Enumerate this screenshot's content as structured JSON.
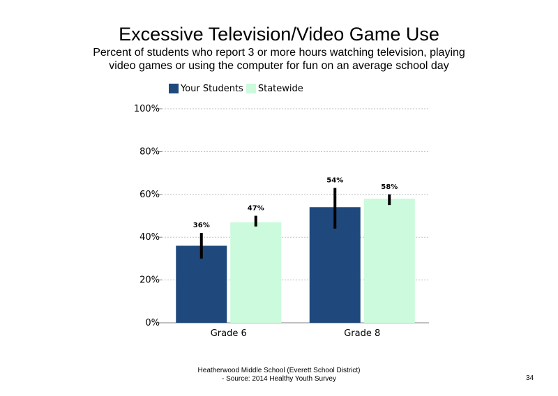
{
  "slide": {
    "title": "Excessive Television/Video Game Use",
    "subtitle": "Percent of students who report 3 or more hours watching television, playing video games or using the computer for fun on an average school day",
    "footer_line1": "Heatherwood Middle School (Everett School District)",
    "footer_line2": "- Source: 2014 Healthy  Youth Survey",
    "page_number": "34"
  },
  "chart_data": {
    "type": "bar",
    "categories": [
      "Grade 6",
      "Grade 8"
    ],
    "series": [
      {
        "name": "Your Students",
        "color": "#1f497d",
        "values": [
          36,
          54
        ],
        "labels": [
          "36%",
          "54%"
        ],
        "error_low": [
          30,
          44
        ],
        "error_high": [
          42,
          63
        ]
      },
      {
        "name": "Statewide",
        "color": "#ccfadc",
        "values": [
          47,
          58
        ],
        "labels": [
          "47%",
          "58%"
        ],
        "error_low": [
          45,
          55
        ],
        "error_high": [
          50,
          60
        ]
      }
    ],
    "ylim": [
      0,
      100
    ],
    "yticks": [
      0,
      20,
      40,
      60,
      80,
      100
    ],
    "ytick_labels": [
      "0%",
      "20%",
      "40%",
      "60%",
      "80%",
      "100%"
    ],
    "grid": true,
    "legend_position": "top-left"
  }
}
